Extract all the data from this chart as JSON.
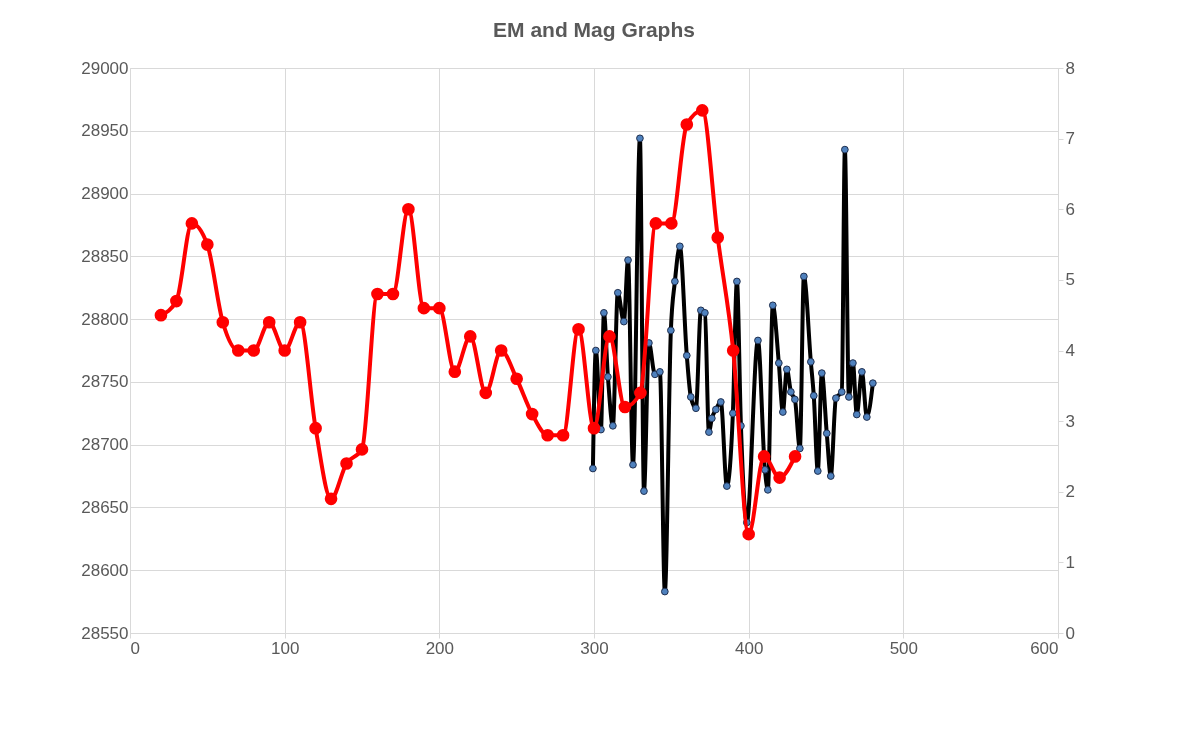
{
  "chart_data": {
    "type": "line",
    "title": "EM and Mag Graphs",
    "xlim": [
      0,
      600
    ],
    "xticks": [
      0,
      100,
      200,
      300,
      400,
      500,
      600
    ],
    "ylim": [
      28550,
      29000
    ],
    "yticks": [
      28550,
      28600,
      28650,
      28700,
      28750,
      28800,
      28850,
      28900,
      28950,
      29000
    ],
    "y2lim": [
      0,
      8
    ],
    "y2ticks": [
      0,
      1,
      2,
      3,
      4,
      5,
      6,
      7,
      8
    ],
    "grid": true,
    "legend": false,
    "marker": "circle",
    "line_style": "solid",
    "series": [
      {
        "color": "#000000",
        "axis": "y",
        "x": [
          299.3,
          301.2,
          304.5,
          306.4,
          309,
          312.2,
          315.4,
          319.3,
          322,
          325.2,
          329.7,
          332.3,
          335.5,
          339.4,
          342.6,
          345.8,
          349.7,
          352.3,
          355.5,
          360,
          362.6,
          365.9,
          369.1,
          371.7,
          374.3,
          376.2,
          378.8,
          382,
          385.9,
          389.8,
          392.4,
          395,
          398.8,
          406,
          410.5,
          412.4,
          415.6,
          419.5,
          422.1,
          424.7,
          427.3,
          429.9,
          433.1,
          435.7,
          440.2,
          442.1,
          444.7,
          447.3,
          450.5,
          453.1,
          456.4,
          460.2,
          462.2,
          464.8,
          467.4,
          469.9,
          473.2,
          476.4,
          480.3
        ],
        "values": [
          28681,
          28775,
          28712,
          28805,
          28754,
          28715,
          28821,
          28798,
          28847,
          28684,
          28944,
          28663,
          28781,
          28756,
          28758,
          28583,
          28791,
          28830,
          28858,
          28771,
          28738,
          28729,
          28807,
          28805,
          28710,
          28721,
          28728,
          28734,
          28667,
          28725,
          28830,
          28715,
          28638,
          28783,
          28680,
          28664,
          28811,
          28765,
          28726,
          28760,
          28742,
          28736,
          28697,
          28834,
          28766,
          28739,
          28679,
          28757,
          28709,
          28675,
          28737,
          28742,
          28935,
          28738,
          28765,
          28724,
          28758,
          28722,
          28749
        ]
      },
      {
        "color": "#ff0000",
        "axis": "y2",
        "x": [
          20,
          30,
          40,
          50,
          60,
          70,
          80,
          90,
          100,
          110,
          120,
          130,
          140,
          150,
          160,
          170,
          180,
          190,
          200,
          210,
          220,
          230,
          240,
          250,
          260,
          270,
          280,
          290,
          300,
          310,
          320,
          330,
          340,
          350,
          360,
          370,
          380,
          390,
          400,
          410,
          420,
          430
        ],
        "values": [
          4.5,
          4.7,
          5.8,
          5.5,
          4.4,
          4.0,
          4.0,
          4.4,
          4.0,
          4.4,
          2.9,
          1.9,
          2.4,
          2.6,
          4.8,
          4.8,
          6.0,
          4.6,
          4.6,
          3.7,
          4.2,
          3.4,
          4.0,
          3.6,
          3.1,
          2.8,
          2.8,
          4.3,
          2.9,
          4.2,
          3.2,
          3.4,
          5.8,
          5.8,
          7.2,
          7.4,
          5.6,
          4.0,
          1.4,
          2.5,
          2.2,
          2.5
        ]
      }
    ]
  }
}
